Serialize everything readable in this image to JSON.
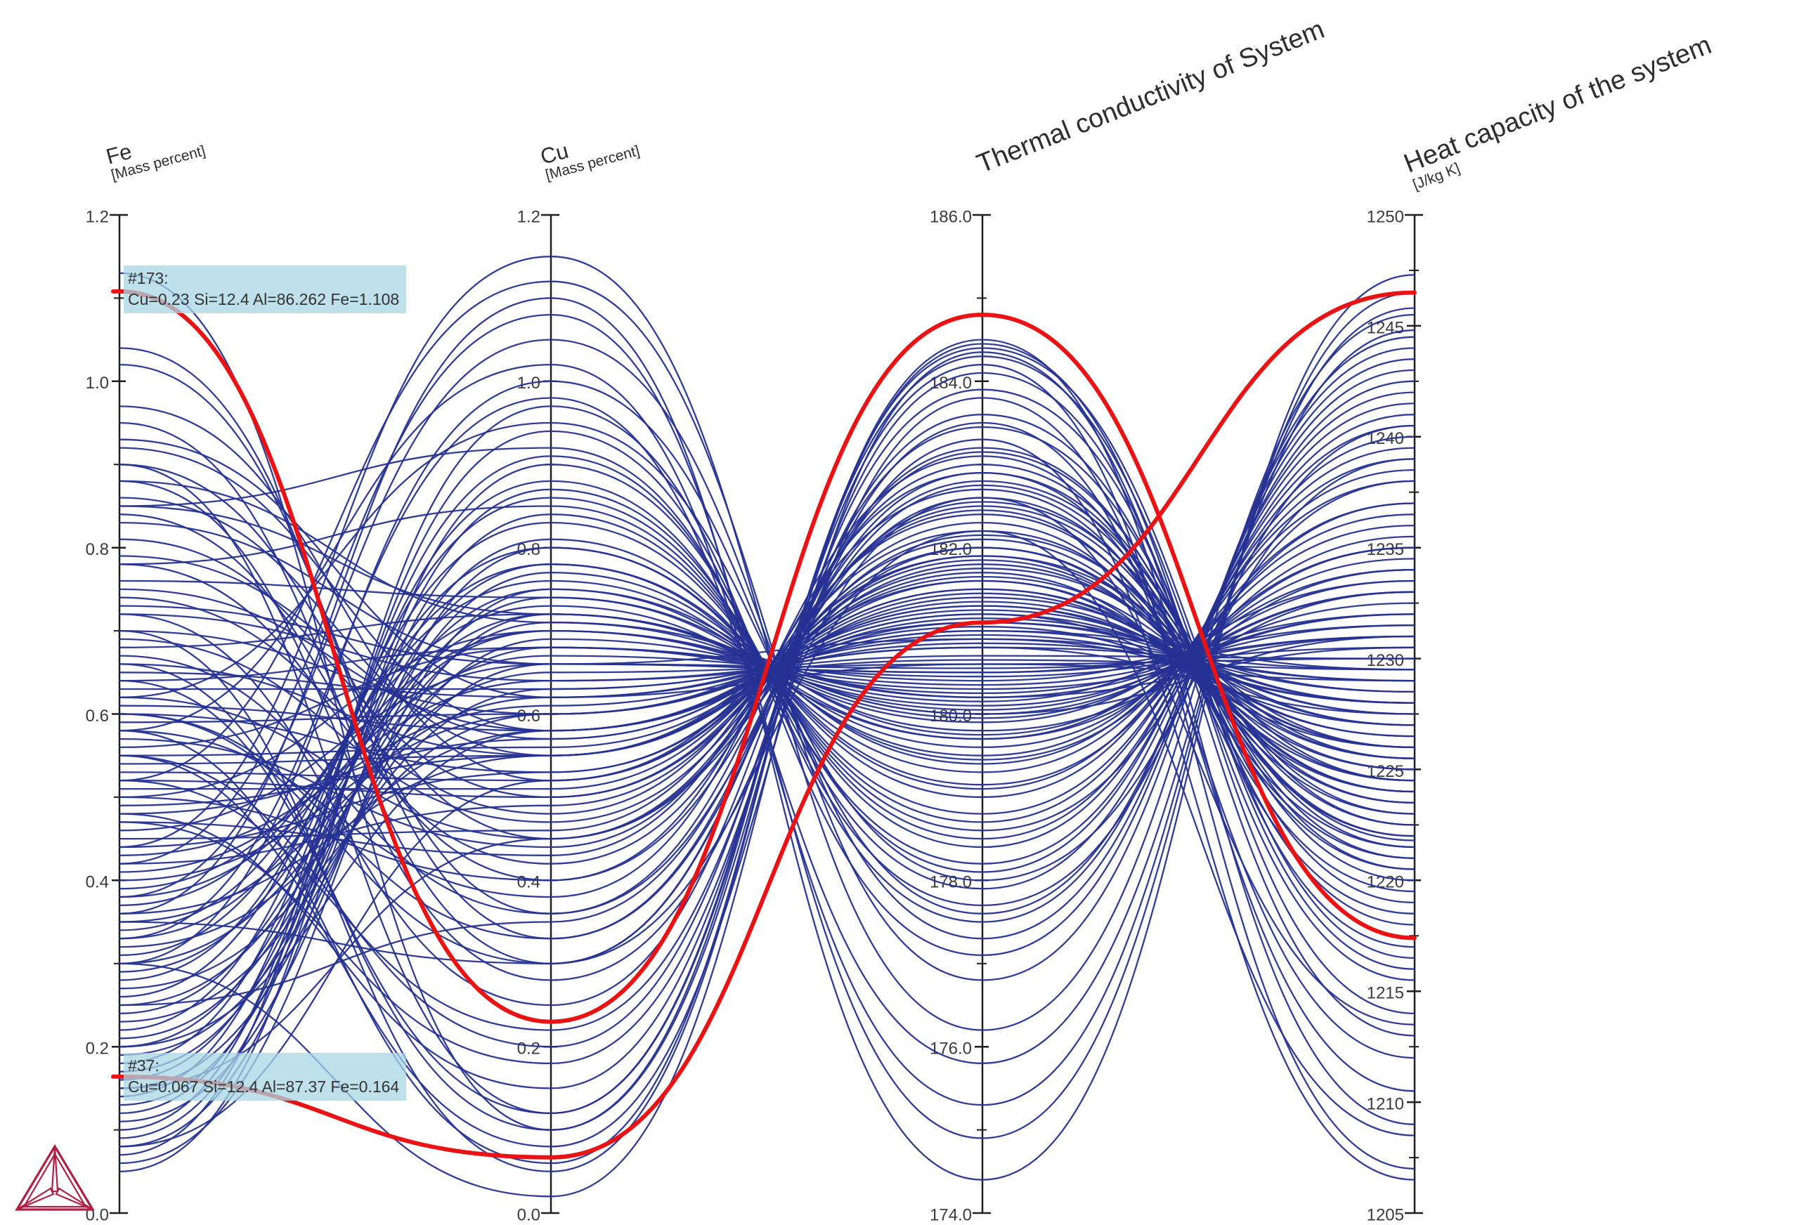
{
  "chart_data": {
    "type": "parallel-coordinates",
    "legend_position": "none",
    "grid": false,
    "axes": [
      {
        "id": "fe",
        "title": "Fe",
        "unit": "[Mass percent]",
        "min": 0.0,
        "max": 1.2,
        "major_ticks": [
          {
            "v": 1.2,
            "label": "1.2"
          },
          {
            "v": 1.0,
            "label": "1.0"
          },
          {
            "v": 0.8,
            "label": "0.8"
          },
          {
            "v": 0.6,
            "label": "0.6"
          },
          {
            "v": 0.4,
            "label": "0.4"
          },
          {
            "v": 0.2,
            "label": "0.2"
          },
          {
            "v": 0.0,
            "label": "0.0"
          }
        ],
        "minor_ticks": [
          1.1,
          0.9,
          0.7,
          0.5,
          0.3,
          0.1
        ]
      },
      {
        "id": "cu",
        "title": "Cu",
        "unit": "[Mass percent]",
        "min": 0.0,
        "max": 1.2,
        "major_ticks": [
          {
            "v": 1.2,
            "label": "1.2"
          },
          {
            "v": 1.0,
            "label": "1.0"
          },
          {
            "v": 0.8,
            "label": "0.8"
          },
          {
            "v": 0.6,
            "label": "0.6"
          },
          {
            "v": 0.4,
            "label": "0.4"
          },
          {
            "v": 0.2,
            "label": "0.2"
          },
          {
            "v": 0.0,
            "label": "0.0"
          }
        ],
        "minor_ticks": [
          1.1,
          0.9,
          0.7,
          0.5,
          0.3,
          0.1
        ]
      },
      {
        "id": "tc",
        "title": "Thermal conductivity of System",
        "unit": "",
        "min": 174.0,
        "max": 186.0,
        "major_ticks": [
          {
            "v": 186.0,
            "label": "186.0"
          },
          {
            "v": 184.0,
            "label": "184.0"
          },
          {
            "v": 182.0,
            "label": "182.0"
          },
          {
            "v": 180.0,
            "label": "180.0"
          },
          {
            "v": 178.0,
            "label": "178.0"
          },
          {
            "v": 176.0,
            "label": "176.0"
          },
          {
            "v": 174.0,
            "label": "174.0"
          }
        ],
        "minor_ticks": [
          185.0,
          183.0,
          181.0,
          179.0,
          177.0,
          175.0
        ]
      },
      {
        "id": "hc",
        "title": "Heat capacity of the system",
        "unit": "[J/kg K]",
        "min": 1205,
        "max": 1250,
        "major_ticks": [
          {
            "v": 1250,
            "label": "1250"
          },
          {
            "v": 1245,
            "label": "1245"
          },
          {
            "v": 1240,
            "label": "1240"
          },
          {
            "v": 1235,
            "label": "1235"
          },
          {
            "v": 1230,
            "label": "1230"
          },
          {
            "v": 1225,
            "label": "1225"
          },
          {
            "v": 1220,
            "label": "1220"
          },
          {
            "v": 1215,
            "label": "1215"
          },
          {
            "v": 1210,
            "label": "1210"
          },
          {
            "v": 1205,
            "label": "1205"
          }
        ],
        "minor_ticks": [
          1247.5,
          1242.5,
          1237.5,
          1232.5,
          1227.5,
          1222.5,
          1217.5,
          1212.5,
          1207.5
        ]
      }
    ],
    "highlights": [
      {
        "header": "#173:",
        "detail": "Cu=0.23 Si=12.4 Al=86.262 Fe=1.108",
        "values": [
          1.108,
          0.23,
          184.8,
          1217.4
        ]
      },
      {
        "header": "#37:",
        "detail": "Cu=0.067 Si=12.4 Al=87.37 Fe=0.164",
        "values": [
          0.164,
          0.067,
          181.1,
          1246.5
        ]
      }
    ],
    "samples": [
      [
        1.13,
        0.1,
        184.4,
        1216.5
      ],
      [
        1.04,
        0.33,
        182.75,
        1221.8
      ],
      [
        1.02,
        0.36,
        182.6,
        1222.0
      ],
      [
        0.97,
        0.52,
        181.9,
        1225.5
      ],
      [
        0.95,
        0.3,
        183.2,
        1220.0
      ],
      [
        0.93,
        0.62,
        180.6,
        1229.0
      ],
      [
        0.9,
        0.45,
        182.0,
        1224.0
      ],
      [
        0.88,
        0.71,
        180.2,
        1230.5
      ],
      [
        0.86,
        0.55,
        181.4,
        1227.0
      ],
      [
        0.84,
        0.4,
        182.9,
        1219.5
      ],
      [
        0.83,
        0.66,
        180.9,
        1228.0
      ],
      [
        0.92,
        0.58,
        181.2,
        1226.0
      ],
      [
        0.67,
        0.36,
        183.0,
        1221.0
      ],
      [
        0.74,
        0.48,
        182.2,
        1223.5
      ],
      [
        0.63,
        0.63,
        180.8,
        1227.5
      ],
      [
        0.85,
        0.72,
        180.0,
        1231.0
      ],
      [
        0.66,
        0.55,
        181.6,
        1224.5
      ],
      [
        0.78,
        0.42,
        182.5,
        1222.5
      ],
      [
        0.59,
        0.6,
        181.0,
        1229.5
      ],
      [
        0.81,
        0.5,
        181.8,
        1225.0
      ],
      [
        0.56,
        0.68,
        180.4,
        1232.0
      ],
      [
        0.79,
        0.57,
        181.3,
        1226.5
      ],
      [
        0.62,
        0.45,
        182.3,
        1221.5
      ],
      [
        0.76,
        0.74,
        179.8,
        1233.0
      ],
      [
        0.53,
        0.52,
        181.7,
        1224.0
      ],
      [
        0.72,
        0.64,
        180.7,
        1230.0
      ],
      [
        0.58,
        0.38,
        183.1,
        1218.5
      ],
      [
        0.75,
        0.58,
        181.1,
        1228.5
      ],
      [
        0.5,
        0.7,
        180.1,
        1232.5
      ],
      [
        0.69,
        0.47,
        182.1,
        1223.0
      ],
      [
        0.54,
        0.55,
        181.5,
        1225.5
      ],
      [
        0.73,
        0.66,
        180.5,
        1231.5
      ],
      [
        0.47,
        0.43,
        182.7,
        1220.5
      ],
      [
        0.7,
        0.6,
        181.05,
        1227.0
      ],
      [
        0.51,
        0.51,
        181.85,
        1224.5
      ],
      [
        0.68,
        0.72,
        179.9,
        1234.0
      ],
      [
        0.45,
        0.46,
        182.4,
        1222.0
      ],
      [
        0.65,
        0.62,
        180.85,
        1229.0
      ],
      [
        0.49,
        0.55,
        181.45,
        1226.0
      ],
      [
        0.64,
        0.68,
        180.3,
        1231.0
      ],
      [
        0.42,
        0.49,
        182.0,
        1223.5
      ],
      [
        0.61,
        0.58,
        181.25,
        1227.5
      ],
      [
        0.46,
        0.66,
        180.55,
        1230.5
      ],
      [
        0.6,
        0.53,
        181.6,
        1225.0
      ],
      [
        0.39,
        0.7,
        180.15,
        1233.5
      ],
      [
        0.57,
        0.44,
        182.45,
        1221.0
      ],
      [
        0.43,
        0.61,
        180.95,
        1228.0
      ],
      [
        0.55,
        0.56,
        181.35,
        1226.5
      ],
      [
        0.37,
        0.73,
        179.7,
        1235.0
      ],
      [
        0.52,
        0.5,
        181.9,
        1224.0
      ],
      [
        0.41,
        0.64,
        180.65,
        1229.5
      ],
      [
        0.48,
        0.57,
        181.3,
        1227.0
      ],
      [
        0.34,
        0.76,
        179.5,
        1236.0
      ],
      [
        0.44,
        0.53,
        181.65,
        1225.5
      ],
      [
        0.38,
        0.67,
        180.45,
        1231.0
      ],
      [
        0.4,
        0.6,
        181.0,
        1228.5
      ],
      [
        0.31,
        0.78,
        179.3,
        1237.0
      ],
      [
        0.36,
        0.55,
        181.5,
        1226.0
      ],
      [
        0.33,
        0.7,
        180.2,
        1232.0
      ],
      [
        0.35,
        0.62,
        180.9,
        1229.0
      ],
      [
        0.28,
        0.8,
        179.1,
        1238.0
      ],
      [
        0.32,
        0.58,
        181.2,
        1227.5
      ],
      [
        0.29,
        0.72,
        180.0,
        1233.0
      ],
      [
        0.3,
        0.65,
        180.6,
        1230.0
      ],
      [
        0.26,
        0.83,
        178.8,
        1239.0
      ],
      [
        0.27,
        0.6,
        181.1,
        1228.0
      ],
      [
        0.24,
        0.75,
        179.75,
        1234.5
      ],
      [
        0.25,
        0.68,
        180.35,
        1231.5
      ],
      [
        0.22,
        0.86,
        178.5,
        1240.0
      ],
      [
        0.23,
        0.63,
        180.8,
        1229.5
      ],
      [
        0.2,
        0.78,
        179.4,
        1236.5
      ],
      [
        0.21,
        0.71,
        180.05,
        1233.0
      ],
      [
        0.18,
        0.88,
        178.2,
        1241.0
      ],
      [
        0.19,
        0.66,
        180.5,
        1231.0
      ],
      [
        0.16,
        0.81,
        179.0,
        1238.5
      ],
      [
        0.17,
        0.74,
        179.7,
        1234.0
      ],
      [
        0.14,
        0.91,
        177.9,
        1242.0
      ],
      [
        0.15,
        0.69,
        180.25,
        1232.0
      ],
      [
        0.12,
        0.84,
        178.7,
        1239.5
      ],
      [
        0.13,
        0.77,
        179.45,
        1235.5
      ],
      [
        0.1,
        0.94,
        177.5,
        1243.0
      ],
      [
        0.11,
        0.72,
        179.95,
        1233.5
      ],
      [
        0.09,
        0.87,
        178.4,
        1240.5
      ],
      [
        0.08,
        0.8,
        179.15,
        1237.0
      ],
      [
        0.07,
        0.97,
        177.1,
        1244.0
      ],
      [
        0.06,
        0.75,
        179.6,
        1235.0
      ],
      [
        0.05,
        0.9,
        178.1,
        1241.5
      ],
      [
        0.44,
        1.15,
        176.2,
        1245.5
      ],
      [
        0.52,
        1.12,
        176.8,
        1244.5
      ],
      [
        0.38,
        1.05,
        177.3,
        1243.5
      ],
      [
        0.3,
        1.0,
        177.6,
        1242.5
      ],
      [
        0.62,
        0.95,
        178.0,
        1239.0
      ],
      [
        0.55,
        0.2,
        183.6,
        1218.0
      ],
      [
        0.48,
        0.15,
        183.9,
        1217.0
      ],
      [
        0.66,
        0.1,
        184.1,
        1215.5
      ],
      [
        0.58,
        0.06,
        184.45,
        1214.0
      ],
      [
        0.72,
        0.25,
        183.45,
        1219.0
      ],
      [
        0.35,
        0.3,
        183.15,
        1220.5
      ],
      [
        0.25,
        0.35,
        182.8,
        1222.5
      ],
      [
        0.85,
        0.92,
        177.7,
        1240.5
      ],
      [
        0.78,
        0.85,
        178.6,
        1238.0
      ],
      [
        0.15,
        0.45,
        182.15,
        1224.5
      ],
      [
        0.08,
        0.52,
        181.75,
        1226.0
      ],
      [
        0.9,
        0.12,
        184.3,
        1216.0
      ],
      [
        0.2,
        0.58,
        181.15,
        1228.0
      ],
      [
        0.6,
        0.33,
        182.9,
        1221.5
      ],
      [
        0.5,
        0.4,
        182.55,
        1223.0
      ],
      [
        0.42,
        1.08,
        174.9,
        1246.5
      ],
      [
        0.36,
        1.1,
        174.4,
        1247.3
      ],
      [
        0.58,
        1.02,
        175.3,
        1245.8
      ],
      [
        0.33,
        0.98,
        175.8,
        1244.8
      ],
      [
        0.7,
        0.05,
        184.5,
        1209.0
      ],
      [
        0.64,
        0.12,
        184.2,
        1207.0
      ],
      [
        0.55,
        0.08,
        183.8,
        1210.5
      ],
      [
        0.47,
        0.18,
        183.5,
        1212.0
      ],
      [
        0.88,
        0.28,
        182.6,
        1213.5
      ],
      [
        0.52,
        0.22,
        183.3,
        1206.5
      ],
      [
        0.6,
        0.3,
        182.2,
        1208.5
      ],
      [
        0.3,
        0.02,
        184.35,
        1213.0
      ]
    ],
    "colors": {
      "line": "#263293",
      "highlight": "#ea1213",
      "axis": "#1e1e1e",
      "tick_label": "#3b3b3b",
      "tooltip_bg": "#a8d5e4",
      "logo": "#b01f42"
    }
  },
  "branding": {
    "logo": "thermo-calc-triangle-logo"
  }
}
